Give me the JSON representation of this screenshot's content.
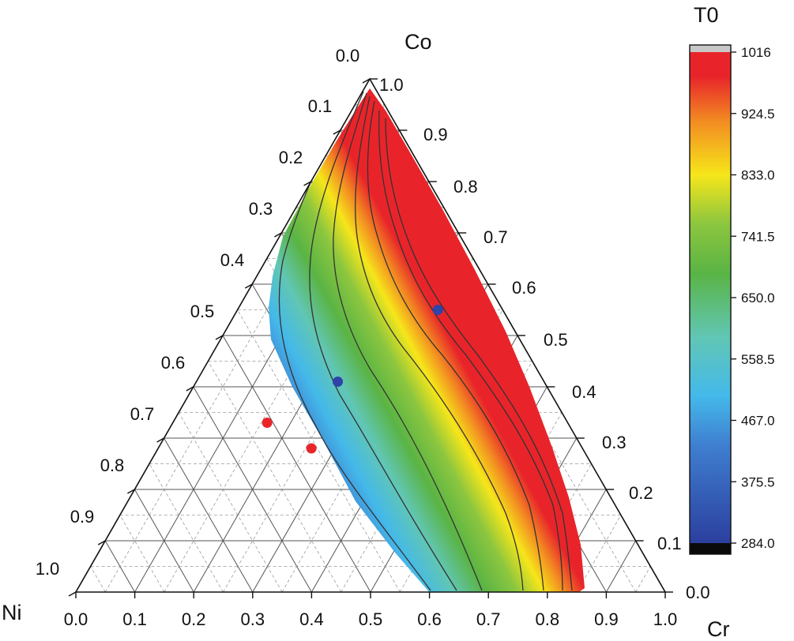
{
  "chart_data": {
    "type": "ternary-contour",
    "axes": {
      "top": {
        "label": "Co",
        "ticks": [
          "0.0",
          "0.1",
          "0.2",
          "0.3",
          "0.4",
          "0.5",
          "0.6",
          "0.7",
          "0.8",
          "0.9",
          "1.0"
        ]
      },
      "right": {
        "label": "Cr",
        "ticks": [
          "0.0",
          "0.1",
          "0.2",
          "0.3",
          "0.4",
          "0.5",
          "0.6",
          "0.7",
          "0.8",
          "0.9",
          "1.0"
        ]
      },
      "left": {
        "label": "Ni",
        "ticks": [
          "0.0",
          "0.1",
          "0.2",
          "0.3",
          "0.4",
          "0.5",
          "0.6",
          "0.7",
          "0.8",
          "0.9",
          "1.0"
        ]
      },
      "bottom": {
        "ticks": [
          "0.0",
          "0.1",
          "0.2",
          "0.3",
          "0.4",
          "0.5",
          "0.6",
          "0.7",
          "0.8",
          "0.9",
          "1.0"
        ]
      }
    },
    "colorbar": {
      "title": "T0",
      "min": 284.0,
      "max": 1016,
      "tick_labels": [
        "1016",
        "924.5",
        "833.0",
        "741.5",
        "650.0",
        "558.5",
        "467.0",
        "375.5",
        "284.0"
      ]
    },
    "contour_levels": [
      375.5,
      467.0,
      558.5,
      650.0,
      741.5,
      833.0,
      924.5
    ],
    "points": [
      {
        "color": "#2e44a8",
        "Ni": 0.11,
        "Cr": 0.34,
        "Co": 0.55
      },
      {
        "color": "#2e44a8",
        "Ni": 0.35,
        "Cr": 0.24,
        "Co": 0.41
      },
      {
        "color": "#e8262a",
        "Ni": 0.51,
        "Cr": 0.16,
        "Co": 0.33
      },
      {
        "color": "#e8262a",
        "Ni": 0.46,
        "Cr": 0.26,
        "Co": 0.28
      }
    ],
    "colors": {
      "low": "#2b3f9e",
      "cyan": "#44b9ea",
      "green": "#5ab444",
      "yellow": "#f6e61a",
      "orange": "#f28b22",
      "red": "#e8242a"
    }
  }
}
